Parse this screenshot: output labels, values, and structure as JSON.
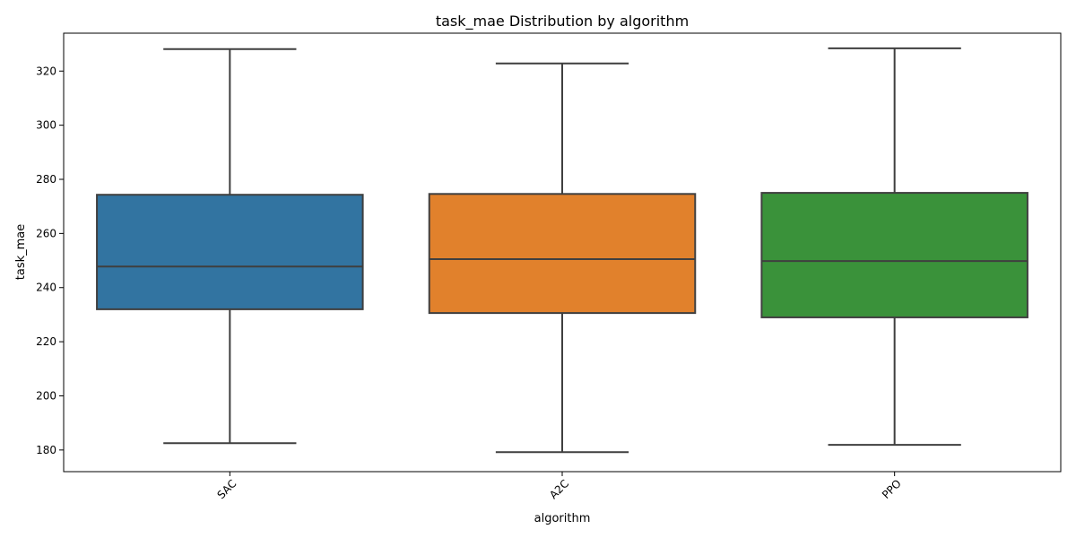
{
  "chart_data": {
    "type": "box",
    "title": "task_mae Distribution by algorithm",
    "xlabel": "algorithm",
    "ylabel": "task_mae",
    "ylim": [
      172,
      334
    ],
    "yticks": [
      180,
      200,
      220,
      240,
      260,
      280,
      300,
      320
    ],
    "grid": false,
    "categories": [
      "SAC",
      "A2C",
      "PPO"
    ],
    "series": [
      {
        "category": "SAC",
        "min": 182.5,
        "q1": 232.0,
        "median": 247.8,
        "q3": 274.3,
        "max": 328.1,
        "color": "#3274a1"
      },
      {
        "category": "A2C",
        "min": 179.2,
        "q1": 230.6,
        "median": 250.5,
        "q3": 274.6,
        "max": 322.8,
        "color": "#e1812c"
      },
      {
        "category": "PPO",
        "min": 181.9,
        "q1": 229.0,
        "median": 249.8,
        "q3": 275.0,
        "max": 328.4,
        "color": "#3a923a"
      }
    ]
  }
}
